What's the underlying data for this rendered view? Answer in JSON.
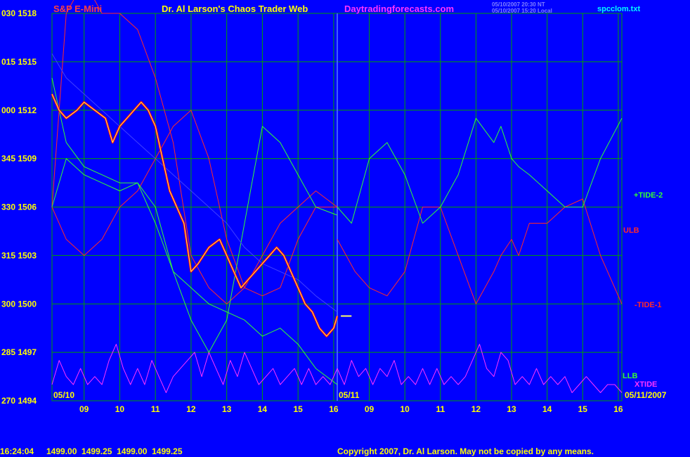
{
  "header": {
    "instrument": "S&P E-Mini",
    "site_title": "Dr. Al Larson's Chaos Trader Web",
    "site_url": "Daytradingforecasts.com",
    "stamp_line1": "05/10/2007 20:30 NT",
    "stamp_line2": "05/10/2007 15:20 Local",
    "data_file": "spcclom.txt"
  },
  "footer": {
    "time": "16:24:04",
    "ohlc": "1499.00  1499.25  1499.00  1499.25",
    "copyright": "Copyright 2007, Dr. Al Larson. May not be copied by any means."
  },
  "colors": {
    "background": "#0000ff",
    "grid": "#00a000",
    "axis_text": "#ffff00",
    "price_down": "#ff0000",
    "price_up": "#ffffff",
    "avg_line": "#ffff66",
    "band_red": "#ff2a2a",
    "tide_green": "#33ff33",
    "xtide": "#ff33ff",
    "slow_avg": "#4040ff",
    "header_red": "#ff4040",
    "header_magenta": "#ff33ff",
    "header_cyan": "#00ffff"
  },
  "chart_data": {
    "type": "line",
    "title": "S&P E-Mini",
    "y_ticks": [
      {
        "code": "030",
        "price": 1518
      },
      {
        "code": "015",
        "price": 1515
      },
      {
        "code": "000",
        "price": 1512
      },
      {
        "code": "345",
        "price": 1509
      },
      {
        "code": "330",
        "price": 1506
      },
      {
        "code": "315",
        "price": 1503
      },
      {
        "code": "300",
        "price": 1500
      },
      {
        "code": "285",
        "price": 1497
      },
      {
        "code": "270",
        "price": 1494
      }
    ],
    "ylim": [
      1494,
      1518
    ],
    "x_ticks": [
      "09",
      "10",
      "11",
      "12",
      "13",
      "14",
      "15",
      "16",
      "09",
      "10",
      "11",
      "12",
      "13",
      "14",
      "15",
      "16"
    ],
    "x_range_hours": [
      8.1,
      16.1,
      8.1,
      16.1
    ],
    "date_labels": [
      "05/10",
      "05/11",
      "05/11/2007"
    ],
    "legend": [
      "+TIDE-2",
      "ULB",
      "-TIDE-1",
      "LLB",
      "XTIDE"
    ],
    "series": [
      {
        "name": "ULB",
        "day": 1,
        "points": [
          [
            8.1,
            1506
          ],
          [
            8.5,
            1518
          ],
          [
            9.0,
            1520
          ],
          [
            9.5,
            1518
          ],
          [
            10.0,
            1518
          ],
          [
            10.5,
            1517
          ],
          [
            11.0,
            1514
          ],
          [
            11.5,
            1510
          ],
          [
            12.0,
            1503
          ],
          [
            12.5,
            1501
          ],
          [
            13.0,
            1500
          ],
          [
            13.5,
            1501
          ],
          [
            14.0,
            1503
          ],
          [
            14.5,
            1505
          ],
          [
            15.0,
            1506
          ],
          [
            15.5,
            1507
          ],
          [
            16.1,
            1506
          ]
        ]
      },
      {
        "name": "ULB",
        "day": 2,
        "points": [
          [
            8.1,
            1504
          ],
          [
            8.6,
            1502
          ],
          [
            9.0,
            1501
          ],
          [
            9.5,
            1500.5
          ],
          [
            10.0,
            1502
          ],
          [
            10.5,
            1506
          ],
          [
            11.0,
            1506
          ],
          [
            11.5,
            1503
          ],
          [
            12.0,
            1500
          ],
          [
            12.5,
            1502
          ],
          [
            12.7,
            1503
          ],
          [
            13.0,
            1504
          ],
          [
            13.2,
            1503
          ],
          [
            13.5,
            1505
          ],
          [
            14.0,
            1505
          ],
          [
            14.5,
            1506
          ],
          [
            15.0,
            1506.5
          ],
          [
            15.5,
            1503
          ],
          [
            16.1,
            1500
          ]
        ]
      },
      {
        "name": "-TIDE-1",
        "day": 1,
        "points": [
          [
            8.1,
            1506
          ],
          [
            8.5,
            1504
          ],
          [
            9.0,
            1503
          ],
          [
            9.5,
            1504
          ],
          [
            10.0,
            1506
          ],
          [
            10.5,
            1507
          ],
          [
            11.0,
            1509
          ],
          [
            11.5,
            1511
          ],
          [
            12.0,
            1512
          ],
          [
            12.5,
            1509
          ],
          [
            13.0,
            1504
          ],
          [
            13.5,
            1501
          ],
          [
            14.0,
            1500.5
          ],
          [
            14.5,
            1501
          ],
          [
            15.0,
            1504
          ],
          [
            15.5,
            1506
          ],
          [
            16.1,
            1506
          ]
        ]
      },
      {
        "name": "+TIDE-2",
        "day": 1,
        "points": [
          [
            8.1,
            1506
          ],
          [
            8.5,
            1509
          ],
          [
            9.0,
            1508
          ],
          [
            9.5,
            1507.5
          ],
          [
            10.0,
            1507
          ],
          [
            10.5,
            1507.5
          ],
          [
            11.0,
            1506
          ],
          [
            11.5,
            1502
          ],
          [
            12.0,
            1499
          ],
          [
            12.5,
            1497
          ],
          [
            13.0,
            1499
          ],
          [
            13.5,
            1505
          ],
          [
            14.0,
            1511
          ],
          [
            14.5,
            1510
          ],
          [
            15.0,
            1508
          ],
          [
            15.5,
            1506
          ],
          [
            16.1,
            1505.5
          ]
        ]
      },
      {
        "name": "+TIDE-2",
        "day": 2,
        "points": [
          [
            8.1,
            1506
          ],
          [
            8.5,
            1505
          ],
          [
            9.0,
            1509
          ],
          [
            9.5,
            1510
          ],
          [
            10.0,
            1508
          ],
          [
            10.5,
            1505
          ],
          [
            11.0,
            1506
          ],
          [
            11.5,
            1508
          ],
          [
            12.0,
            1511.5
          ],
          [
            12.5,
            1510
          ],
          [
            12.7,
            1511
          ],
          [
            13.0,
            1509
          ],
          [
            13.2,
            1508.5
          ],
          [
            13.5,
            1508
          ],
          [
            14.0,
            1507
          ],
          [
            14.5,
            1506
          ],
          [
            15.0,
            1506
          ],
          [
            15.5,
            1509
          ],
          [
            16.1,
            1511.5
          ]
        ]
      },
      {
        "name": "LLB",
        "day": 1,
        "points": [
          [
            8.1,
            1514
          ],
          [
            8.5,
            1510
          ],
          [
            9.0,
            1508.5
          ],
          [
            9.5,
            1508
          ],
          [
            10.0,
            1507.5
          ],
          [
            10.5,
            1507.5
          ],
          [
            11.0,
            1505
          ],
          [
            11.5,
            1502
          ],
          [
            12.0,
            1501
          ],
          [
            12.5,
            1500
          ],
          [
            13.0,
            1499.5
          ],
          [
            13.5,
            1499
          ],
          [
            14.0,
            1498
          ],
          [
            14.5,
            1498.5
          ],
          [
            15.0,
            1497.5
          ],
          [
            15.5,
            1496
          ],
          [
            16.1,
            1495
          ]
        ]
      },
      {
        "name": "XTIDE",
        "day": 1,
        "points": [
          [
            8.1,
            1495
          ],
          [
            8.3,
            1496.5
          ],
          [
            8.5,
            1495.5
          ],
          [
            8.7,
            1495
          ],
          [
            8.9,
            1496
          ],
          [
            9.1,
            1495
          ],
          [
            9.3,
            1495.5
          ],
          [
            9.5,
            1495
          ],
          [
            9.7,
            1496.5
          ],
          [
            9.9,
            1497.5
          ],
          [
            10.1,
            1496
          ],
          [
            10.3,
            1495
          ],
          [
            10.5,
            1496
          ],
          [
            10.7,
            1495
          ],
          [
            10.9,
            1496.5
          ],
          [
            11.1,
            1495.5
          ],
          [
            11.3,
            1494.5
          ],
          [
            11.5,
            1495.5
          ],
          [
            11.7,
            1496
          ],
          [
            11.9,
            1496.5
          ],
          [
            12.1,
            1497
          ],
          [
            12.3,
            1495.5
          ],
          [
            12.5,
            1497
          ],
          [
            12.7,
            1496
          ],
          [
            12.9,
            1495
          ],
          [
            13.1,
            1496.5
          ],
          [
            13.3,
            1495.5
          ],
          [
            13.5,
            1497
          ],
          [
            13.7,
            1496
          ],
          [
            13.9,
            1495
          ],
          [
            14.1,
            1495.5
          ],
          [
            14.3,
            1496
          ],
          [
            14.5,
            1495
          ],
          [
            14.7,
            1495.5
          ],
          [
            14.9,
            1496
          ],
          [
            15.1,
            1495
          ],
          [
            15.3,
            1496
          ],
          [
            15.5,
            1495
          ],
          [
            15.7,
            1495.5
          ],
          [
            15.9,
            1495
          ],
          [
            16.1,
            1496
          ]
        ]
      },
      {
        "name": "XTIDE",
        "day": 2,
        "points": [
          [
            8.1,
            1496
          ],
          [
            8.3,
            1495
          ],
          [
            8.5,
            1496.5
          ],
          [
            8.7,
            1495.5
          ],
          [
            8.9,
            1496
          ],
          [
            9.1,
            1495
          ],
          [
            9.3,
            1496
          ],
          [
            9.5,
            1495.5
          ],
          [
            9.7,
            1496.5
          ],
          [
            9.9,
            1495
          ],
          [
            10.1,
            1495.5
          ],
          [
            10.3,
            1495
          ],
          [
            10.5,
            1496
          ],
          [
            10.7,
            1495
          ],
          [
            10.9,
            1496
          ],
          [
            11.1,
            1495
          ],
          [
            11.3,
            1495.5
          ],
          [
            11.5,
            1495
          ],
          [
            11.7,
            1495.5
          ],
          [
            11.9,
            1496.5
          ],
          [
            12.1,
            1497.5
          ],
          [
            12.3,
            1496
          ],
          [
            12.5,
            1495.5
          ],
          [
            12.7,
            1497
          ],
          [
            12.9,
            1496.5
          ],
          [
            13.1,
            1495
          ],
          [
            13.3,
            1495.5
          ],
          [
            13.5,
            1495
          ],
          [
            13.7,
            1496
          ],
          [
            13.9,
            1495
          ],
          [
            14.1,
            1495.5
          ],
          [
            14.3,
            1495
          ],
          [
            14.5,
            1495.5
          ],
          [
            14.7,
            1494.5
          ],
          [
            14.9,
            1495
          ],
          [
            15.1,
            1495.5
          ],
          [
            15.3,
            1495
          ],
          [
            15.5,
            1494.5
          ],
          [
            15.7,
            1495
          ],
          [
            15.9,
            1495
          ],
          [
            16.1,
            1494.5
          ]
        ]
      },
      {
        "name": "slow-average",
        "day": 1,
        "points": [
          [
            8.1,
            1515.5
          ],
          [
            8.5,
            1514
          ],
          [
            9.0,
            1513
          ],
          [
            9.5,
            1512
          ],
          [
            10.0,
            1511
          ],
          [
            10.5,
            1510
          ],
          [
            11.0,
            1509
          ],
          [
            11.5,
            1508
          ],
          [
            12.0,
            1507
          ],
          [
            12.5,
            1506
          ],
          [
            13.0,
            1505
          ],
          [
            13.5,
            1503.5
          ],
          [
            14.0,
            1502.5
          ],
          [
            14.5,
            1502
          ],
          [
            15.0,
            1501.5
          ],
          [
            15.5,
            1500.5
          ],
          [
            16.1,
            1499.5
          ]
        ]
      },
      {
        "name": "price",
        "day": 1,
        "points": [
          [
            8.1,
            1513
          ],
          [
            8.3,
            1512
          ],
          [
            8.5,
            1511.5
          ],
          [
            8.8,
            1512
          ],
          [
            9.0,
            1512.5
          ],
          [
            9.3,
            1512
          ],
          [
            9.6,
            1511.5
          ],
          [
            9.8,
            1510
          ],
          [
            10.0,
            1511
          ],
          [
            10.2,
            1511.5
          ],
          [
            10.4,
            1512
          ],
          [
            10.6,
            1512.5
          ],
          [
            10.8,
            1512
          ],
          [
            11.0,
            1511
          ],
          [
            11.2,
            1509
          ],
          [
            11.4,
            1507
          ],
          [
            11.6,
            1506
          ],
          [
            11.8,
            1505
          ],
          [
            12.0,
            1502
          ],
          [
            12.2,
            1502.5
          ],
          [
            12.5,
            1503.5
          ],
          [
            12.8,
            1504
          ],
          [
            13.0,
            1503
          ],
          [
            13.2,
            1502
          ],
          [
            13.4,
            1501
          ],
          [
            13.6,
            1501.5
          ],
          [
            13.8,
            1502
          ],
          [
            14.0,
            1502.5
          ],
          [
            14.2,
            1503
          ],
          [
            14.4,
            1503.5
          ],
          [
            14.6,
            1503
          ],
          [
            14.8,
            1502
          ],
          [
            15.0,
            1501
          ],
          [
            15.2,
            1500
          ],
          [
            15.4,
            1499.5
          ],
          [
            15.6,
            1498.5
          ],
          [
            15.8,
            1498
          ],
          [
            16.0,
            1498.5
          ],
          [
            16.1,
            1499.25
          ]
        ]
      },
      {
        "name": "forecast-marker",
        "day": 1,
        "points": [
          [
            16.2,
            1499.25
          ],
          [
            16.5,
            1499.25
          ]
        ]
      }
    ]
  }
}
